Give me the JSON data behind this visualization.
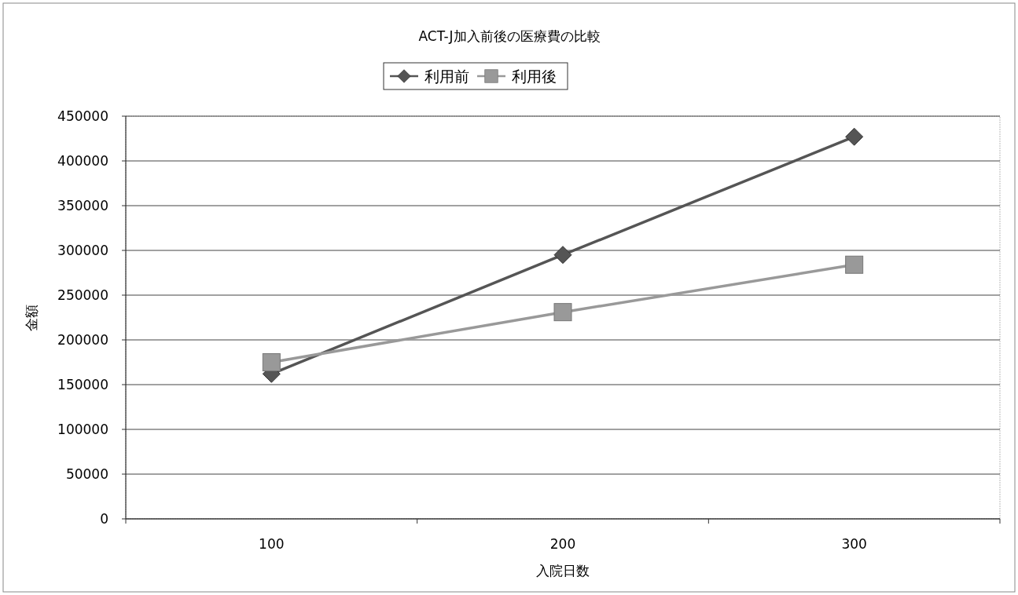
{
  "chart_data": {
    "type": "line",
    "title": "ACT-J加入前後の医療費の比較",
    "xlabel": "入院日数",
    "ylabel": "金額",
    "categories": [
      "100",
      "200",
      "300"
    ],
    "series": [
      {
        "name": "利用前",
        "color": "#555555",
        "marker": "diamond",
        "values": [
          162000,
          295000,
          427000
        ]
      },
      {
        "name": "利用後",
        "color": "#999999",
        "marker": "square",
        "values": [
          175000,
          231000,
          284000
        ]
      }
    ],
    "ylim": [
      0,
      450000
    ],
    "yticks": [
      0,
      50000,
      100000,
      150000,
      200000,
      250000,
      300000,
      350000,
      400000,
      450000
    ],
    "grid": "y",
    "legend": "top",
    "line_style": "solid"
  }
}
